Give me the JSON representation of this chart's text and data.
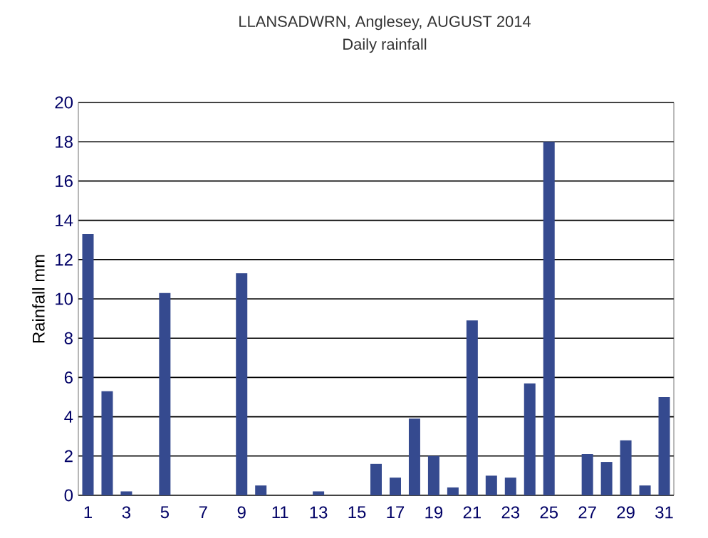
{
  "chart_data": {
    "type": "bar",
    "title": "LLANSADWRN, Anglesey, AUGUST 2014",
    "subtitle": "Daily rainfall",
    "ylabel": "Rainfall mm",
    "categories": [
      "1",
      null,
      "3",
      null,
      "5",
      null,
      "7",
      null,
      "9",
      null,
      "11",
      null,
      "13",
      null,
      "15",
      null,
      "17",
      null,
      "19",
      null,
      "21",
      null,
      "23",
      null,
      "25",
      null,
      "27",
      null,
      "29",
      null,
      "31"
    ],
    "values": [
      13.3,
      5.3,
      0.2,
      0,
      10.3,
      0,
      0,
      0,
      11.3,
      0.5,
      0,
      0,
      0.2,
      0,
      0,
      1.6,
      0.9,
      3.9,
      2.0,
      0.4,
      8.9,
      1.0,
      0.9,
      5.7,
      18.0,
      0,
      2.1,
      1.7,
      2.8,
      0.5,
      5.0
    ],
    "color": "#354a8f",
    "ylim": [
      0,
      20
    ],
    "yticks": [
      0,
      2,
      4,
      6,
      8,
      10,
      12,
      14,
      16,
      18,
      20
    ],
    "grid": "y"
  }
}
